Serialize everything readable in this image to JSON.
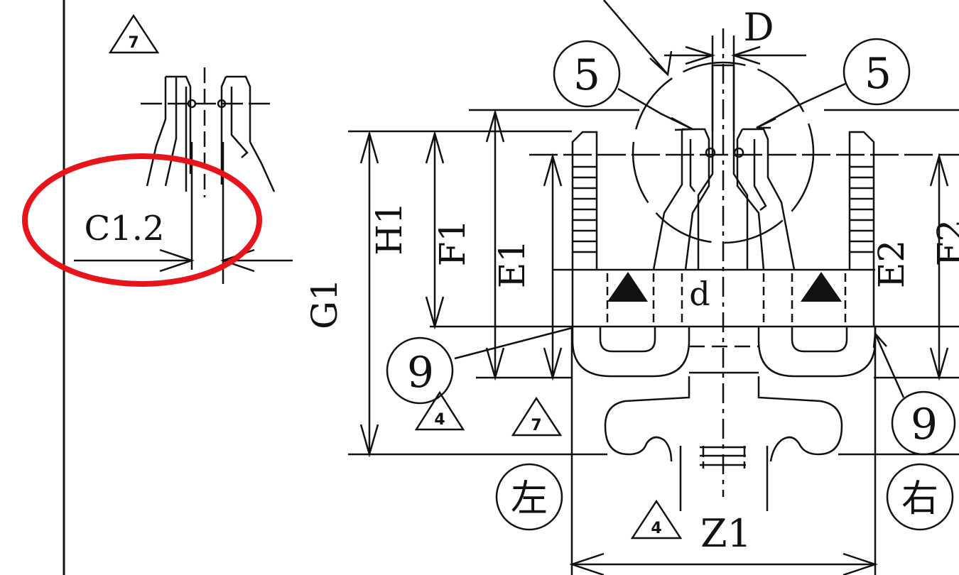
{
  "diagram": {
    "colors": {
      "ink": "#111111",
      "highlight": "#e8141c",
      "paper": "#ffffff"
    },
    "dimension_labels": {
      "D": "D",
      "H1": "H1",
      "F1": "F1",
      "E1": "E1",
      "E2": "E2",
      "G1": "G1",
      "d": "d",
      "Z1": "Z1",
      "F2": "F2",
      "C12": "C1.2"
    },
    "balloons": {
      "b5": "5",
      "b9": "9"
    },
    "revision_triangles": {
      "r7": "7",
      "r4": "4"
    },
    "side_markers": {
      "left": "左",
      "right": "右"
    }
  }
}
